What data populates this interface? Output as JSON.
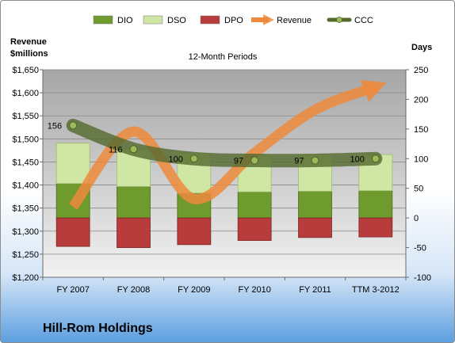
{
  "chart_data": {
    "type": "bar",
    "title": "12-Month Periods",
    "categories": [
      "FY 2007",
      "FY 2008",
      "FY 2009",
      "FY 2010",
      "FY 2011",
      "TTM 3-2012"
    ],
    "series": [
      {
        "name": "DIO",
        "kind": "stacked-bar",
        "axis": "days",
        "color": "#6f9a2e",
        "values": [
          58,
          53,
          42,
          44,
          45,
          46
        ]
      },
      {
        "name": "DSO",
        "kind": "stacked-bar",
        "axis": "days",
        "color": "#cfe6a4",
        "values": [
          68,
          63,
          67,
          62,
          62,
          61
        ]
      },
      {
        "name": "DPO",
        "kind": "bar-below-zero",
        "axis": "days",
        "color": "#b83c3c",
        "values": [
          -48,
          -50,
          -45,
          -38,
          -33,
          -32
        ]
      },
      {
        "name": "Revenue",
        "kind": "arrow-line",
        "axis": "revenue",
        "color": "#ef8a3c",
        "values": [
          1353,
          1516,
          1370,
          1470,
          1563,
          1613
        ]
      },
      {
        "name": "CCC",
        "kind": "line",
        "axis": "days",
        "color": "#556b2f",
        "values": [
          156,
          116,
          100,
          97,
          97,
          100
        ]
      }
    ],
    "data_labels": [
      "156",
      "116",
      "100",
      "97",
      "97",
      "100"
    ],
    "y_left": {
      "label_line1": "Revenue",
      "label_line2": "$millions",
      "range": [
        1200,
        1650
      ],
      "ticks": [
        "$1,200",
        "$1,250",
        "$1,300",
        "$1,350",
        "$1,400",
        "$1,450",
        "$1,500",
        "$1,550",
        "$1,600",
        "$1,650"
      ]
    },
    "y_right": {
      "label": "Days",
      "range": [
        -100,
        250
      ],
      "ticks": [
        "-100",
        "-50",
        "0",
        "50",
        "100",
        "150",
        "200",
        "250"
      ]
    },
    "legend_position": "top",
    "grid": true
  },
  "company": "Hill-Rom Holdings"
}
